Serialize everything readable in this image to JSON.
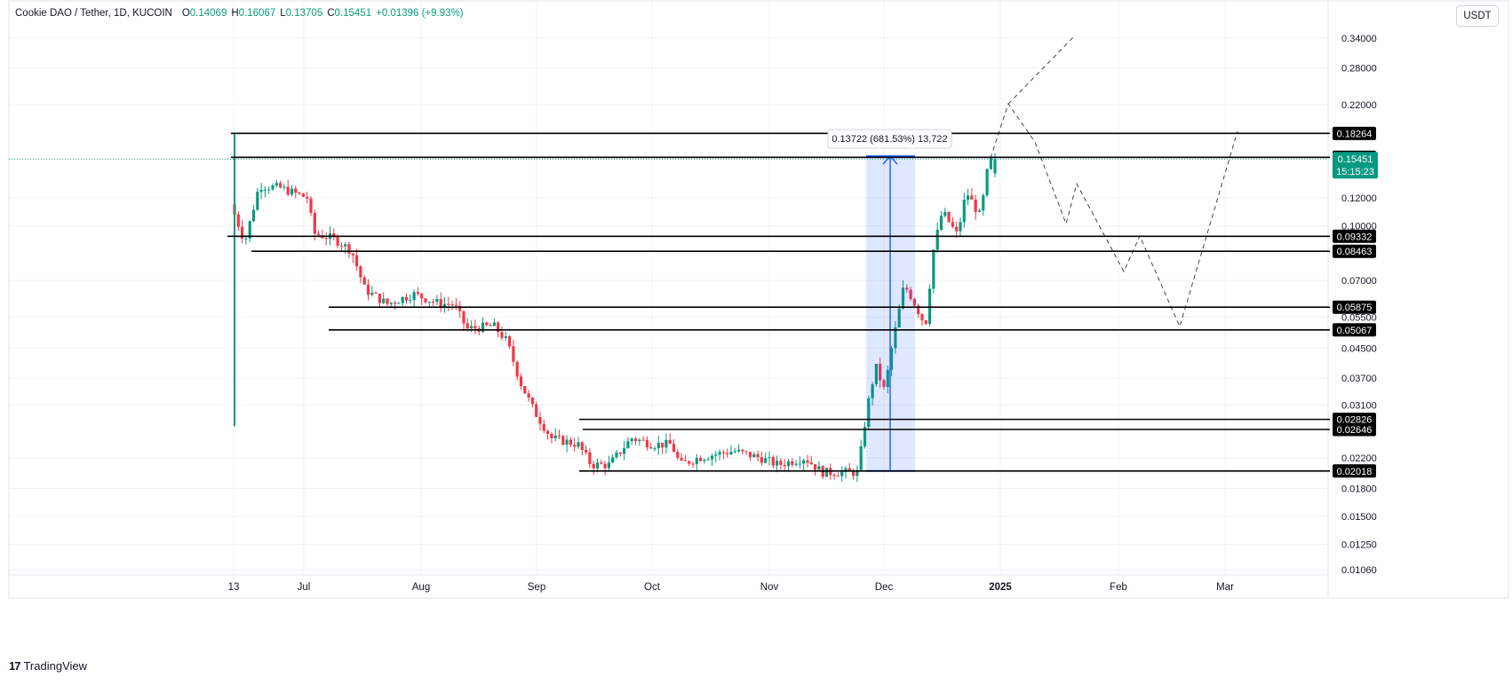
{
  "header": {
    "symbol": "Cookie DAO / Tether, 1D, KUCOIN",
    "open_label": "O",
    "open": "0.14069",
    "high_label": "H",
    "high": "0.16067",
    "low_label": "L",
    "low": "0.13705",
    "close_label": "C",
    "close": "0.15451",
    "change": "+0.01396 (+9.93%)",
    "currency": "USDT"
  },
  "footer": {
    "logo": "17",
    "brand": "TradingView"
  },
  "colors": {
    "up": "#089981",
    "down": "#f23645",
    "measure": "#2962ff",
    "grid": "#f0f3fa",
    "level": "#000000"
  },
  "chart_data": {
    "type": "candlestick",
    "scale": "log",
    "ylim": [
      0.0095,
      0.375
    ],
    "x_ticks": [
      "13",
      "Jul",
      "Aug",
      "Sep",
      "Oct",
      "Nov",
      "Dec",
      "2025",
      "Feb",
      "Mar"
    ],
    "y_ticks": [
      "0.34000",
      "0.28000",
      "0.22000",
      "0.12000",
      "0.10000",
      "0.07000",
      "0.05500",
      "0.04500",
      "0.03700",
      "0.03100",
      "0.02200",
      "0.01800",
      "0.01500",
      "0.01250",
      "0.01060"
    ],
    "key_levels": [
      "0.18264",
      "0.15624",
      "0.09332",
      "0.08463",
      "0.05875",
      "0.05067",
      "0.02826",
      "0.02646",
      "0.02018"
    ],
    "last_price": {
      "price": "0.15451",
      "countdown": "15:15:23"
    },
    "measure_label": "0.13722 (681.53%) 13,722",
    "candles_ohlc_sample": [
      [
        0.089,
        0.182,
        0.027,
        0.115
      ],
      [
        0.118,
        0.14,
        0.12,
        0.13
      ],
      [
        0.126,
        0.131,
        0.112,
        0.115
      ],
      [
        0.096,
        0.099,
        0.083,
        0.086
      ],
      [
        0.066,
        0.068,
        0.055,
        0.058
      ],
      [
        0.047,
        0.051,
        0.04,
        0.043
      ],
      [
        0.03,
        0.032,
        0.026,
        0.027
      ],
      [
        0.021,
        0.024,
        0.02,
        0.022
      ],
      [
        0.02,
        0.05,
        0.02,
        0.046
      ],
      [
        0.064,
        0.091,
        0.061,
        0.085
      ],
      [
        0.112,
        0.15,
        0.096,
        0.14
      ],
      [
        0.1407,
        0.1607,
        0.1371,
        0.1545
      ]
    ]
  }
}
